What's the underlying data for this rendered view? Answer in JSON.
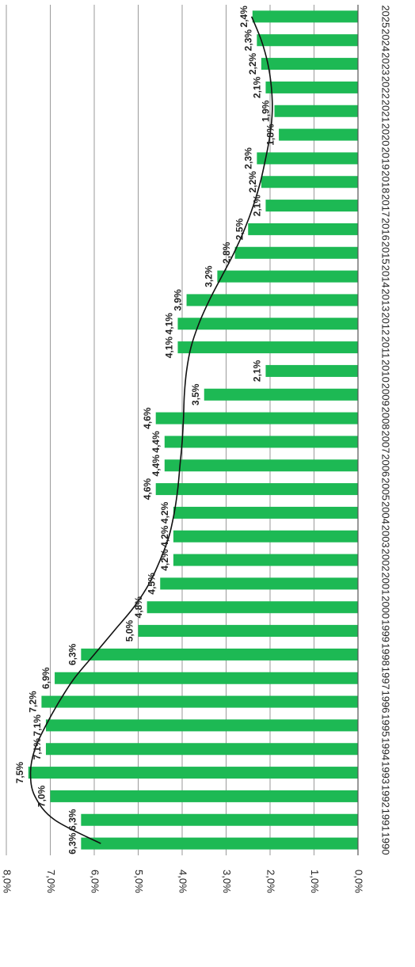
{
  "chart_data": {
    "type": "bar",
    "categories": [
      "1990",
      "1991",
      "1992",
      "1993",
      "1994",
      "1995",
      "1996",
      "1997",
      "1998",
      "1999",
      "2000",
      "2001",
      "2002",
      "2003",
      "2004",
      "2005",
      "2006",
      "2007",
      "2008",
      "2009",
      "2010",
      "2011",
      "2012",
      "2013",
      "2014",
      "2015",
      "2016",
      "2017",
      "2018",
      "2019",
      "2020",
      "2021",
      "2022",
      "2023",
      "2024",
      "2025"
    ],
    "series": [
      {
        "values": [
          6.3,
          6.3,
          7.0,
          7.5,
          7.1,
          7.1,
          7.2,
          6.9,
          6.3,
          5.0,
          4.8,
          4.5,
          4.2,
          4.2,
          4.2,
          4.6,
          4.4,
          4.4,
          4.6,
          3.5,
          2.1,
          4.1,
          4.1,
          3.9,
          3.2,
          2.8,
          2.5,
          2.1,
          2.2,
          2.3,
          1.8,
          1.9,
          2.1,
          2.2,
          2.3,
          2.4
        ],
        "labels": [
          "6,3%",
          "6,3%",
          "7,0%",
          "7,5%",
          "7,1%",
          "7,1%",
          "7,2%",
          "6,9%",
          "6,3%",
          "5,0%",
          "4,8%",
          "4,5%",
          "4,2%",
          "4,2%",
          "4,2%",
          "4,6%",
          "4,4%",
          "4,4%",
          "4,6%",
          "3,5%",
          "2,1%",
          "4,1%",
          "4,1%",
          "3,9%",
          "3,2%",
          "2,8%",
          "2,5%",
          "2,1%",
          "2,2%",
          "2,3%",
          "1,8%",
          "1,9%",
          "2,1%",
          "2,2%",
          "2,3%",
          "2,4%"
        ],
        "color": "#1db954"
      }
    ],
    "trendline": {
      "type": "polynomial",
      "color": "#111111",
      "values": [
        5.85,
        6.9,
        7.35,
        7.45,
        7.35,
        7.1,
        6.8,
        6.45,
        6.0,
        5.55,
        5.1,
        4.75,
        4.5,
        4.3,
        4.18,
        4.1,
        4.05,
        4.0,
        3.97,
        3.95,
        3.9,
        3.8,
        3.62,
        3.38,
        3.1,
        2.82,
        2.58,
        2.38,
        2.22,
        2.1,
        2.0,
        1.95,
        1.97,
        2.05,
        2.2,
        2.42
      ]
    },
    "x_ticks": [
      "0,0%",
      "1,0%",
      "2,0%",
      "3,0%",
      "4,0%",
      "5,0%",
      "6,0%",
      "7,0%",
      "8,0%"
    ],
    "xlim": [
      0,
      8
    ],
    "orientation": "horizontal, page rotated 90°",
    "grid": true,
    "legend": "none",
    "title": "",
    "xlabel": "",
    "ylabel": ""
  }
}
